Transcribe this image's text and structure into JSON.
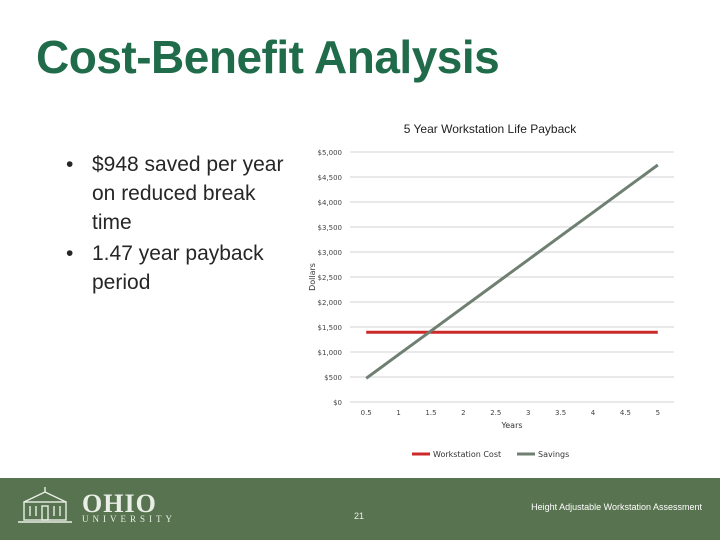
{
  "slide": {
    "title": "Cost-Benefit Analysis",
    "bullets": [
      "$948 saved per year on reduced break time",
      "1.47 year payback period"
    ]
  },
  "chart_data": {
    "type": "line",
    "title": "5 Year Workstation Life Payback",
    "xlabel": "Years",
    "ylabel": "Dollars",
    "x": [
      0.5,
      1,
      1.5,
      2,
      2.5,
      3,
      3.5,
      4,
      4.5,
      5
    ],
    "x_tick_labels": [
      "0.5",
      "1",
      "1.5",
      "2",
      "2.5",
      "3",
      "3.5",
      "4",
      "4.5",
      "5"
    ],
    "y_tick_values": [
      0,
      500,
      1000,
      1500,
      2000,
      2500,
      3000,
      3500,
      4000,
      4500,
      5000
    ],
    "y_tick_labels": [
      "$0",
      "$500",
      "$1,000",
      "$1,500",
      "$2,000",
      "$2,500",
      "$3,000",
      "$3,500",
      "$4,000",
      "$4,500",
      "$5,000"
    ],
    "ylim": [
      0,
      5000
    ],
    "grid": true,
    "legend_position": "bottom",
    "series": [
      {
        "name": "Workstation Cost",
        "color": "#cc2a2a",
        "values": [
          1394,
          1394,
          1394,
          1394,
          1394,
          1394,
          1394,
          1394,
          1394,
          1394
        ]
      },
      {
        "name": "Savings",
        "color": "#6f7f72",
        "values": [
          474,
          948,
          1422,
          1896,
          2370,
          2844,
          3318,
          3792,
          4266,
          4740
        ]
      }
    ]
  },
  "footer": {
    "logo_name": "OHIO",
    "logo_sub": "UNIVERSITY",
    "page_number": "21",
    "caption": "Height Adjustable Workstation Assessment",
    "bar_color": "#58734f"
  }
}
